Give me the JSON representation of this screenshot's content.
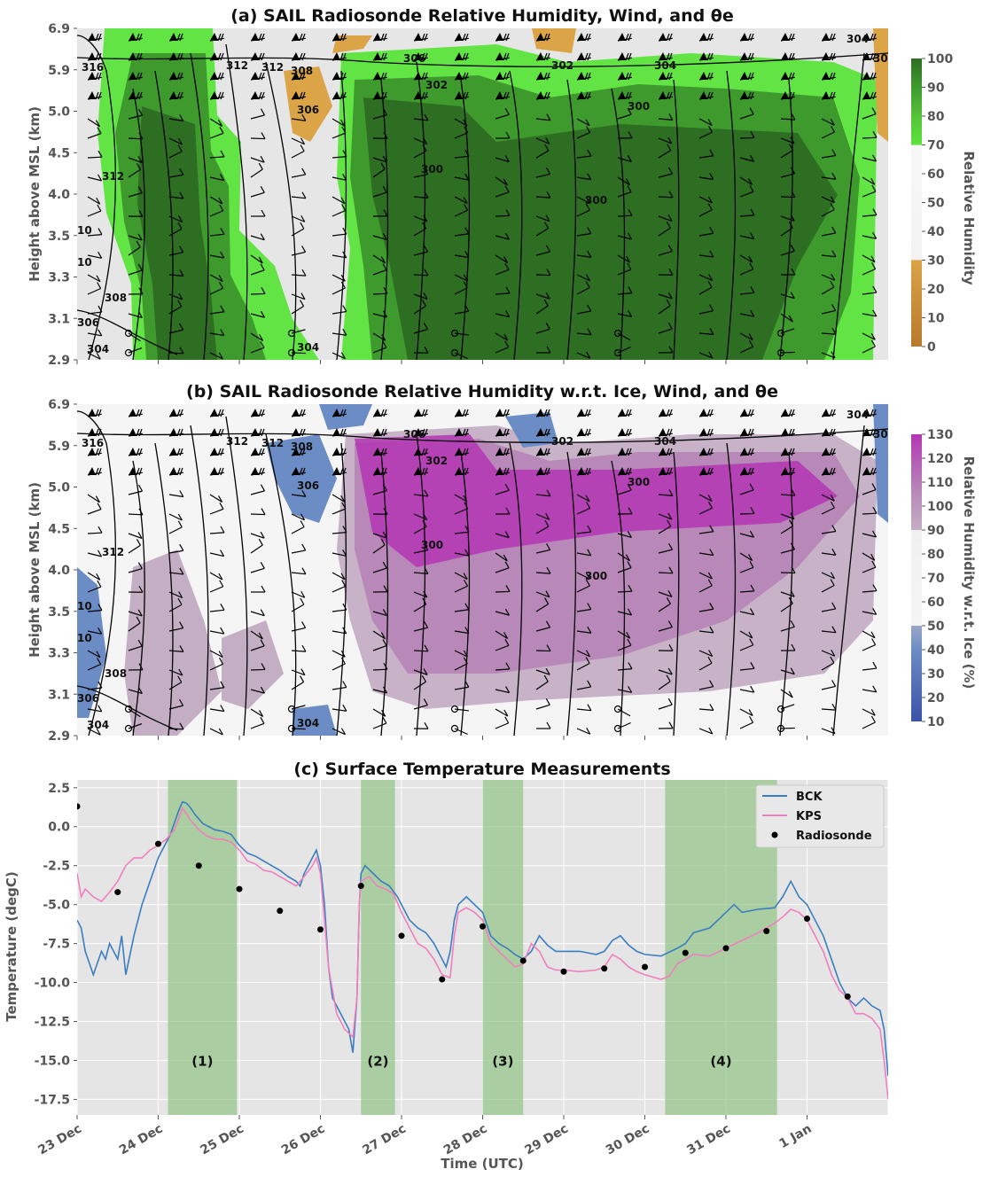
{
  "panels": {
    "a": {
      "title": "(a) SAIL Radiosonde Relative Humidity, Wind, and θe",
      "ylabel": "Height above MSL (km)",
      "colorbar_label": "Relative Humidity",
      "colorbar_ticks": [
        "0",
        "10",
        "20",
        "30",
        "40",
        "50",
        "60",
        "70",
        "80",
        "90",
        "100"
      ],
      "contour_labels": [
        "316",
        "312",
        "314",
        "312",
        "308",
        "306",
        "302",
        "304",
        "304",
        "30",
        "320",
        "312",
        "306",
        "304",
        "302",
        "300",
        "302",
        "300",
        "312",
        "10",
        "314",
        "10",
        "308",
        "306",
        "304",
        "304",
        "306"
      ]
    },
    "b": {
      "title": "(b) SAIL Radiosonde Relative Humidity w.r.t. Ice, Wind, and θe",
      "ylabel": "Height above MSL (km)",
      "colorbar_label": "Relative Humidity w.r.t. Ice (%)",
      "colorbar_ticks": [
        "10",
        "20",
        "30",
        "40",
        "50",
        "60",
        "70",
        "80",
        "90",
        "100",
        "110",
        "120",
        "130"
      ],
      "contour_labels": [
        "316",
        "312",
        "314",
        "312",
        "308",
        "306",
        "302",
        "304",
        "304",
        "30",
        "320",
        "312",
        "306",
        "304",
        "302",
        "300",
        "302",
        "300",
        "312",
        "10",
        "314",
        "10",
        "308",
        "306",
        "304",
        "304",
        "306"
      ]
    },
    "c": {
      "title": "(c) Surface Temperature Measurements",
      "ylabel": "Temperature (degC)",
      "xlabel": "Time (UTC)",
      "event_labels": [
        "(1)",
        "(2)",
        "(3)",
        "(4)"
      ],
      "legend": [
        "BCK",
        "KPS",
        "Radiosonde"
      ]
    }
  },
  "shared_y_ticks": [
    "2.9",
    "3.1",
    "3.3",
    "3.5",
    "4.0",
    "4.5",
    "5.0",
    "5.9",
    "6.9"
  ],
  "x_ticks": [
    "23 Dec",
    "24 Dec",
    "25 Dec",
    "26 Dec",
    "27 Dec",
    "28 Dec",
    "29 Dec",
    "30 Dec",
    "31 Dec",
    "1 Jan"
  ],
  "chart_data": [
    {
      "type": "heatmap",
      "title": "(a) SAIL Radiosonde Relative Humidity, Wind, and θe",
      "ylabel": "Height above MSL (km)",
      "colorbar": {
        "label": "Relative Humidity",
        "range": [
          0,
          100
        ]
      },
      "contours": "θe (K): 300–320"
    },
    {
      "type": "heatmap",
      "title": "(b) SAIL Radiosonde Relative Humidity w.r.t. Ice, Wind, and θe",
      "ylabel": "Height above MSL (km)",
      "colorbar": {
        "label": "Relative Humidity w.r.t. Ice (%)",
        "range": [
          10,
          130
        ]
      },
      "contours": "θe (K): 300–320"
    },
    {
      "type": "line",
      "title": "(c) Surface Temperature Measurements",
      "xlabel": "Time (UTC)",
      "ylabel": "Temperature (degC)",
      "ylim": [
        -18.5,
        3
      ],
      "y_ticks": [
        2.5,
        0.0,
        -2.5,
        -5.0,
        -7.5,
        -10.0,
        -12.5,
        -15.0,
        -17.5
      ],
      "x_range_days": [
        "23 Dec",
        "2 Jan"
      ],
      "shaded_periods": [
        {
          "label": "(1)",
          "start_day": 1.12,
          "end_day": 1.97
        },
        {
          "label": "(2)",
          "start_day": 3.5,
          "end_day": 3.92
        },
        {
          "label": "(3)",
          "start_day": 5.0,
          "end_day": 5.5
        },
        {
          "label": "(4)",
          "start_day": 7.25,
          "end_day": 8.63
        }
      ],
      "series": [
        {
          "name": "BCK",
          "color": "#3b7ec0",
          "points": [
            [
              0,
              -6
            ],
            [
              0.05,
              -6.5
            ],
            [
              0.1,
              -8
            ],
            [
              0.2,
              -9.5
            ],
            [
              0.3,
              -8
            ],
            [
              0.35,
              -8.5
            ],
            [
              0.4,
              -7.5
            ],
            [
              0.5,
              -8.5
            ],
            [
              0.55,
              -7
            ],
            [
              0.6,
              -9.5
            ],
            [
              0.7,
              -7
            ],
            [
              0.8,
              -5
            ],
            [
              0.9,
              -3.5
            ],
            [
              1.0,
              -2
            ],
            [
              1.1,
              -1
            ],
            [
              1.15,
              -0.5
            ],
            [
              1.25,
              1
            ],
            [
              1.3,
              1.6
            ],
            [
              1.35,
              1.5
            ],
            [
              1.4,
              1.2
            ],
            [
              1.45,
              0.8
            ],
            [
              1.55,
              0.2
            ],
            [
              1.7,
              -0.2
            ],
            [
              1.8,
              -0.3
            ],
            [
              1.9,
              -0.5
            ],
            [
              1.97,
              -1
            ],
            [
              2.0,
              -1.2
            ],
            [
              2.1,
              -1.7
            ],
            [
              2.2,
              -1.9
            ],
            [
              2.3,
              -2.2
            ],
            [
              2.5,
              -2.8
            ],
            [
              2.6,
              -3.2
            ],
            [
              2.7,
              -3.5
            ],
            [
              2.75,
              -3.8
            ],
            [
              2.8,
              -3
            ],
            [
              2.9,
              -2
            ],
            [
              2.95,
              -1.5
            ],
            [
              3.0,
              -2.5
            ],
            [
              3.05,
              -5
            ],
            [
              3.1,
              -9
            ],
            [
              3.15,
              -11
            ],
            [
              3.25,
              -12
            ],
            [
              3.35,
              -13
            ],
            [
              3.4,
              -14.5
            ],
            [
              3.45,
              -11
            ],
            [
              3.48,
              -5
            ],
            [
              3.5,
              -3
            ],
            [
              3.55,
              -2.5
            ],
            [
              3.65,
              -3
            ],
            [
              3.75,
              -3.5
            ],
            [
              3.85,
              -3.8
            ],
            [
              3.95,
              -4.5
            ],
            [
              4.0,
              -5
            ],
            [
              4.1,
              -6
            ],
            [
              4.2,
              -6.5
            ],
            [
              4.3,
              -6.8
            ],
            [
              4.4,
              -7.5
            ],
            [
              4.5,
              -8.5
            ],
            [
              4.55,
              -9
            ],
            [
              4.6,
              -8
            ],
            [
              4.65,
              -6
            ],
            [
              4.7,
              -5
            ],
            [
              4.8,
              -4.5
            ],
            [
              4.9,
              -5
            ],
            [
              5.0,
              -5.5
            ],
            [
              5.1,
              -7
            ],
            [
              5.2,
              -7.5
            ],
            [
              5.3,
              -7.8
            ],
            [
              5.4,
              -8.2
            ],
            [
              5.5,
              -8.5
            ],
            [
              5.6,
              -8
            ],
            [
              5.7,
              -7
            ],
            [
              5.8,
              -7.6
            ],
            [
              5.9,
              -8
            ],
            [
              6.0,
              -8
            ],
            [
              6.2,
              -8
            ],
            [
              6.4,
              -8.2
            ],
            [
              6.5,
              -8
            ],
            [
              6.6,
              -7.3
            ],
            [
              6.7,
              -7
            ],
            [
              6.8,
              -7.6
            ],
            [
              6.9,
              -8
            ],
            [
              7.0,
              -8.2
            ],
            [
              7.2,
              -8.3
            ],
            [
              7.4,
              -7.8
            ],
            [
              7.5,
              -7.5
            ],
            [
              7.6,
              -6.8
            ],
            [
              7.8,
              -6.5
            ],
            [
              8.0,
              -5.5
            ],
            [
              8.1,
              -5
            ],
            [
              8.2,
              -5.5
            ],
            [
              8.4,
              -5.3
            ],
            [
              8.6,
              -5.2
            ],
            [
              8.7,
              -4.5
            ],
            [
              8.8,
              -3.5
            ],
            [
              8.9,
              -4.5
            ],
            [
              9.0,
              -5
            ],
            [
              9.1,
              -6
            ],
            [
              9.2,
              -7
            ],
            [
              9.3,
              -8.5
            ],
            [
              9.4,
              -10
            ],
            [
              9.5,
              -11
            ],
            [
              9.6,
              -11.5
            ],
            [
              9.7,
              -11
            ],
            [
              9.8,
              -11.5
            ],
            [
              9.9,
              -11.8
            ],
            [
              9.95,
              -13
            ],
            [
              10.0,
              -16
            ]
          ]
        },
        {
          "name": "KPS",
          "color": "#f07fbf",
          "points": [
            [
              0,
              -3
            ],
            [
              0.05,
              -4.5
            ],
            [
              0.1,
              -4
            ],
            [
              0.2,
              -4.5
            ],
            [
              0.3,
              -4.8
            ],
            [
              0.4,
              -4.2
            ],
            [
              0.5,
              -3.5
            ],
            [
              0.6,
              -2.5
            ],
            [
              0.7,
              -2
            ],
            [
              0.8,
              -2
            ],
            [
              0.9,
              -1.5
            ],
            [
              1.0,
              -1.2
            ],
            [
              1.1,
              -0.8
            ],
            [
              1.2,
              -0.2
            ],
            [
              1.25,
              0.5
            ],
            [
              1.3,
              1.2
            ],
            [
              1.35,
              0.8
            ],
            [
              1.4,
              0.4
            ],
            [
              1.5,
              -0.2
            ],
            [
              1.6,
              -0.6
            ],
            [
              1.7,
              -0.8
            ],
            [
              1.8,
              -0.8
            ],
            [
              1.9,
              -1
            ],
            [
              2.0,
              -1.5
            ],
            [
              2.1,
              -2.2
            ],
            [
              2.2,
              -2.4
            ],
            [
              2.3,
              -2.8
            ],
            [
              2.4,
              -2.9
            ],
            [
              2.5,
              -3.2
            ],
            [
              2.6,
              -3.5
            ],
            [
              2.7,
              -3.8
            ],
            [
              2.8,
              -3.2
            ],
            [
              2.9,
              -2.5
            ],
            [
              2.95,
              -2
            ],
            [
              3.0,
              -3
            ],
            [
              3.05,
              -6
            ],
            [
              3.1,
              -9
            ],
            [
              3.2,
              -12
            ],
            [
              3.3,
              -13
            ],
            [
              3.4,
              -13.5
            ],
            [
              3.45,
              -11
            ],
            [
              3.48,
              -5
            ],
            [
              3.5,
              -3.5
            ],
            [
              3.6,
              -3.2
            ],
            [
              3.7,
              -3.8
            ],
            [
              3.8,
              -4
            ],
            [
              3.9,
              -4.3
            ],
            [
              4.0,
              -5.5
            ],
            [
              4.1,
              -6.5
            ],
            [
              4.2,
              -7.5
            ],
            [
              4.3,
              -7.8
            ],
            [
              4.4,
              -8.5
            ],
            [
              4.5,
              -9.5
            ],
            [
              4.6,
              -9.7
            ],
            [
              4.65,
              -7
            ],
            [
              4.7,
              -5.5
            ],
            [
              4.8,
              -5.2
            ],
            [
              4.9,
              -5.5
            ],
            [
              5.0,
              -6
            ],
            [
              5.1,
              -7.5
            ],
            [
              5.2,
              -8
            ],
            [
              5.3,
              -8.5
            ],
            [
              5.4,
              -9
            ],
            [
              5.5,
              -8.8
            ],
            [
              5.6,
              -7.5
            ],
            [
              5.7,
              -8
            ],
            [
              5.8,
              -9
            ],
            [
              5.9,
              -9.2
            ],
            [
              6.0,
              -9.2
            ],
            [
              6.2,
              -9.3
            ],
            [
              6.4,
              -9.2
            ],
            [
              6.5,
              -9
            ],
            [
              6.6,
              -8.2
            ],
            [
              6.7,
              -8.5
            ],
            [
              6.8,
              -9
            ],
            [
              6.9,
              -9.3
            ],
            [
              7.0,
              -9.5
            ],
            [
              7.2,
              -9.8
            ],
            [
              7.3,
              -9.6
            ],
            [
              7.4,
              -8.8
            ],
            [
              7.6,
              -8.2
            ],
            [
              7.8,
              -8.3
            ],
            [
              8.0,
              -7.8
            ],
            [
              8.2,
              -7.3
            ],
            [
              8.4,
              -6.8
            ],
            [
              8.6,
              -6.2
            ],
            [
              8.7,
              -5.8
            ],
            [
              8.8,
              -5.3
            ],
            [
              8.9,
              -5.5
            ],
            [
              9.0,
              -6
            ],
            [
              9.1,
              -7
            ],
            [
              9.2,
              -8
            ],
            [
              9.3,
              -9.5
            ],
            [
              9.4,
              -10.5
            ],
            [
              9.5,
              -11
            ],
            [
              9.6,
              -12
            ],
            [
              9.7,
              -12
            ],
            [
              9.8,
              -12.3
            ],
            [
              9.9,
              -13
            ],
            [
              9.95,
              -15
            ],
            [
              10.0,
              -17.5
            ]
          ]
        },
        {
          "name": "Radiosonde",
          "color": "#000000",
          "points": [
            [
              0,
              1.3
            ],
            [
              0.5,
              -4.2
            ],
            [
              1.0,
              -1.1
            ],
            [
              1.5,
              -2.5
            ],
            [
              2.0,
              -4.0
            ],
            [
              2.5,
              -5.4
            ],
            [
              3.0,
              -6.6
            ],
            [
              3.5,
              -3.8
            ],
            [
              4.0,
              -7.0
            ],
            [
              4.5,
              -9.8
            ],
            [
              5.0,
              -6.4
            ],
            [
              5.5,
              -8.6
            ],
            [
              6.0,
              -9.3
            ],
            [
              6.5,
              -9.1
            ],
            [
              7.0,
              -9.0
            ],
            [
              7.5,
              -8.1
            ],
            [
              8.0,
              -7.8
            ],
            [
              8.5,
              -6.7
            ],
            [
              9.0,
              -5.9
            ],
            [
              9.5,
              -10.9
            ]
          ]
        }
      ]
    }
  ]
}
